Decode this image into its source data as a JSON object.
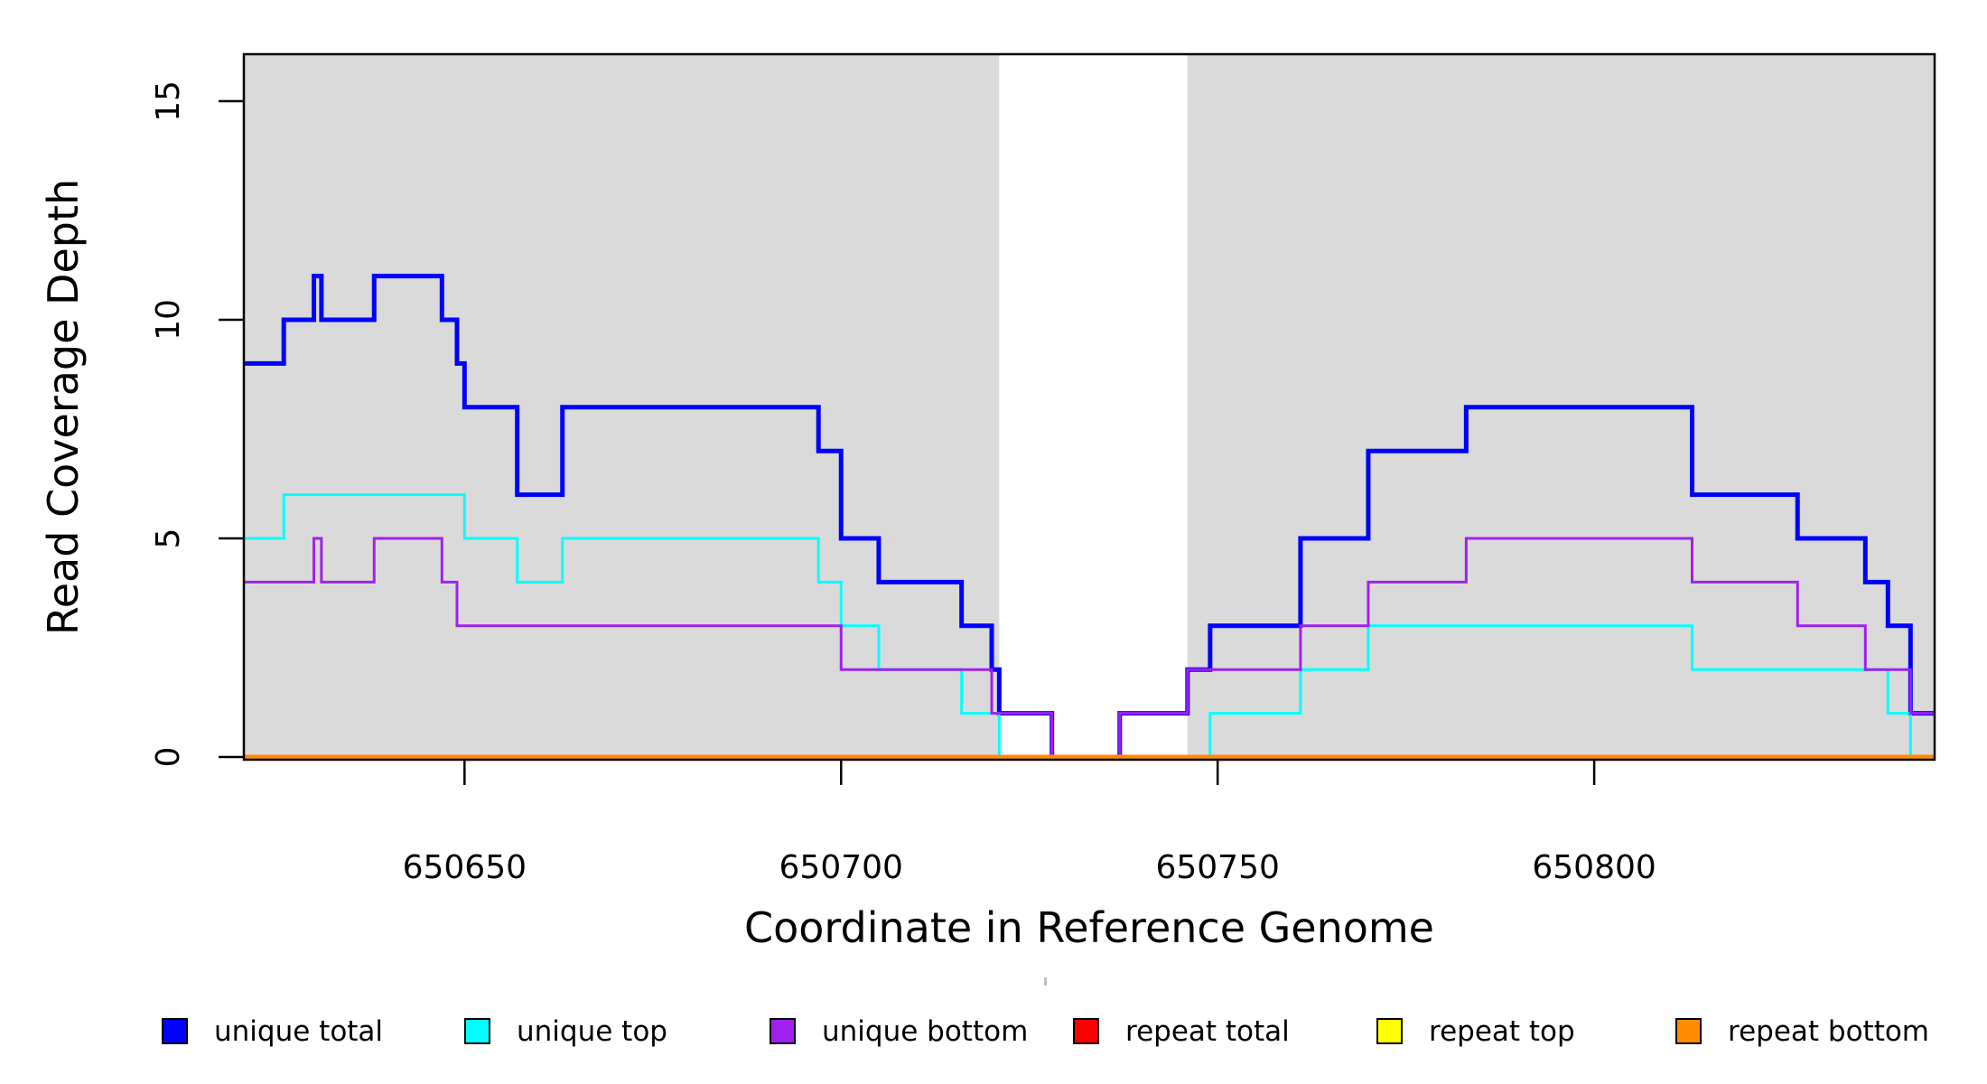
{
  "chart_data": {
    "type": "line",
    "subtype": "step",
    "title": "",
    "xlabel": "Coordinate in Reference Genome",
    "ylabel": "Read Coverage Depth",
    "xlim": [
      650620.7,
      650845.2
    ],
    "ylim": [
      0,
      16.1
    ],
    "grid": false,
    "x_ticks": [
      650650,
      650700,
      650750,
      650800
    ],
    "x_tick_labels": [
      "650650",
      "650700",
      "650750",
      "650800"
    ],
    "y_ticks": [
      0,
      5,
      10,
      15
    ],
    "y_tick_labels": [
      "0",
      "5",
      "10",
      "15"
    ],
    "background_color": "#ffffff",
    "region_color": "#DADADA",
    "background_regions": [
      {
        "from": 650620.7,
        "to": 650721
      },
      {
        "from": 650746,
        "to": 650845.2
      }
    ],
    "legend_position": "bottom",
    "series": [
      {
        "name": "unique total",
        "color": "#0000FF",
        "width": 5,
        "steps": [
          [
            650620.7,
            9
          ],
          [
            650626,
            10
          ],
          [
            650630,
            11
          ],
          [
            650631,
            10
          ],
          [
            650638,
            11
          ],
          [
            650647,
            10
          ],
          [
            650649,
            9
          ],
          [
            650650,
            8
          ],
          [
            650657,
            6
          ],
          [
            650663,
            8
          ],
          [
            650697,
            7
          ],
          [
            650700,
            5
          ],
          [
            650705,
            4
          ],
          [
            650716,
            3
          ],
          [
            650720,
            2
          ],
          [
            650721,
            1
          ],
          [
            650728,
            0
          ],
          [
            650737,
            1
          ],
          [
            650746,
            2
          ],
          [
            650749,
            3
          ],
          [
            650761,
            5
          ],
          [
            650770,
            7
          ],
          [
            650783,
            8
          ],
          [
            650813,
            6
          ],
          [
            650827,
            5
          ],
          [
            650836,
            4
          ],
          [
            650839,
            3
          ],
          [
            650842,
            1
          ]
        ]
      },
      {
        "name": "unique top",
        "color": "#00FFFF",
        "width": 3,
        "steps": [
          [
            650620.7,
            5
          ],
          [
            650626,
            6
          ],
          [
            650650,
            5
          ],
          [
            650657,
            4
          ],
          [
            650663,
            5
          ],
          [
            650697,
            4
          ],
          [
            650700,
            3
          ],
          [
            650705,
            2
          ],
          [
            650716,
            1
          ],
          [
            650721,
            0
          ],
          [
            650749,
            1
          ],
          [
            650761,
            2
          ],
          [
            650770,
            3
          ],
          [
            650813,
            2
          ],
          [
            650839,
            1
          ],
          [
            650842,
            0
          ]
        ]
      },
      {
        "name": "unique bottom",
        "color": "#A020F0",
        "width": 3,
        "steps": [
          [
            650620.7,
            4
          ],
          [
            650630,
            5
          ],
          [
            650631,
            4
          ],
          [
            650638,
            5
          ],
          [
            650647,
            4
          ],
          [
            650649,
            3
          ],
          [
            650700,
            2
          ],
          [
            650720,
            1
          ],
          [
            650728,
            0
          ],
          [
            650737,
            1
          ],
          [
            650746,
            2
          ],
          [
            650761,
            3
          ],
          [
            650770,
            4
          ],
          [
            650783,
            5
          ],
          [
            650813,
            4
          ],
          [
            650827,
            3
          ],
          [
            650836,
            2
          ],
          [
            650842,
            1
          ]
        ]
      },
      {
        "name": "repeat total",
        "color": "#FF0000",
        "width": 3,
        "steps": [
          [
            650620.7,
            0
          ]
        ]
      },
      {
        "name": "repeat top",
        "color": "#FFFF00",
        "width": 3,
        "steps": [
          [
            650620.7,
            0
          ]
        ]
      },
      {
        "name": "repeat bottom",
        "color": "#FF8C00",
        "width": 5,
        "steps": [
          [
            650620.7,
            0
          ]
        ]
      }
    ]
  }
}
